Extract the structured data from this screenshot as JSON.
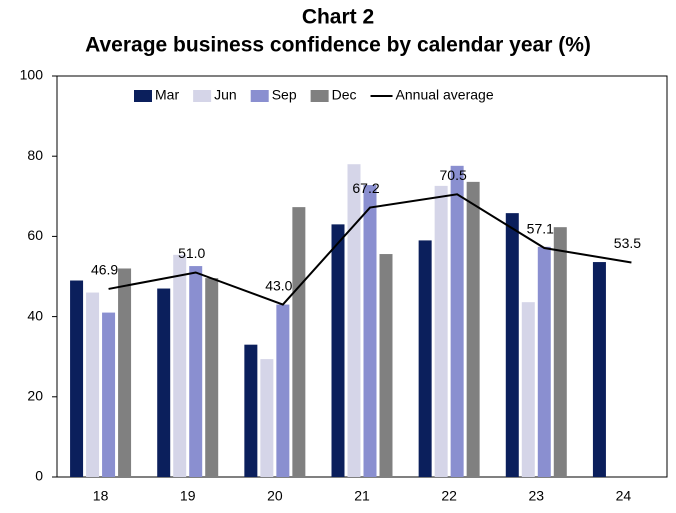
{
  "chart_data": {
    "type": "bar",
    "title": "Chart 2",
    "subtitle": "Average business confidence by calendar year (%)",
    "categories": [
      "18",
      "19",
      "20",
      "21",
      "22",
      "23",
      "24"
    ],
    "series": [
      {
        "name": "Mar",
        "color": "#0b1f5c",
        "values": [
          49,
          47,
          33,
          63,
          59,
          65.8,
          53.6
        ]
      },
      {
        "name": "Jun",
        "color": "#d5d5e8",
        "values": [
          46,
          55.4,
          29.4,
          78,
          72.6,
          43.6,
          null
        ]
      },
      {
        "name": "Sep",
        "color": "#8a8fd0",
        "values": [
          41,
          52.6,
          43,
          72.8,
          77.6,
          57.4,
          null
        ]
      },
      {
        "name": "Dec",
        "color": "#808080",
        "values": [
          52,
          49.6,
          67.3,
          55.6,
          73.6,
          62.3,
          null
        ]
      },
      {
        "name": "Annual average",
        "type": "line",
        "color": "#000000",
        "values": [
          46.9,
          51,
          43,
          67.2,
          70.5,
          57.1,
          53.5
        ],
        "value_labels": [
          "46.9",
          "51.0",
          "43.0",
          "67.2",
          "70.5",
          "57.1",
          "53.5"
        ]
      }
    ],
    "ylim": [
      0,
      100
    ],
    "yticks": [
      0,
      20,
      40,
      60,
      80,
      100
    ],
    "grid": false,
    "legend": "top"
  }
}
